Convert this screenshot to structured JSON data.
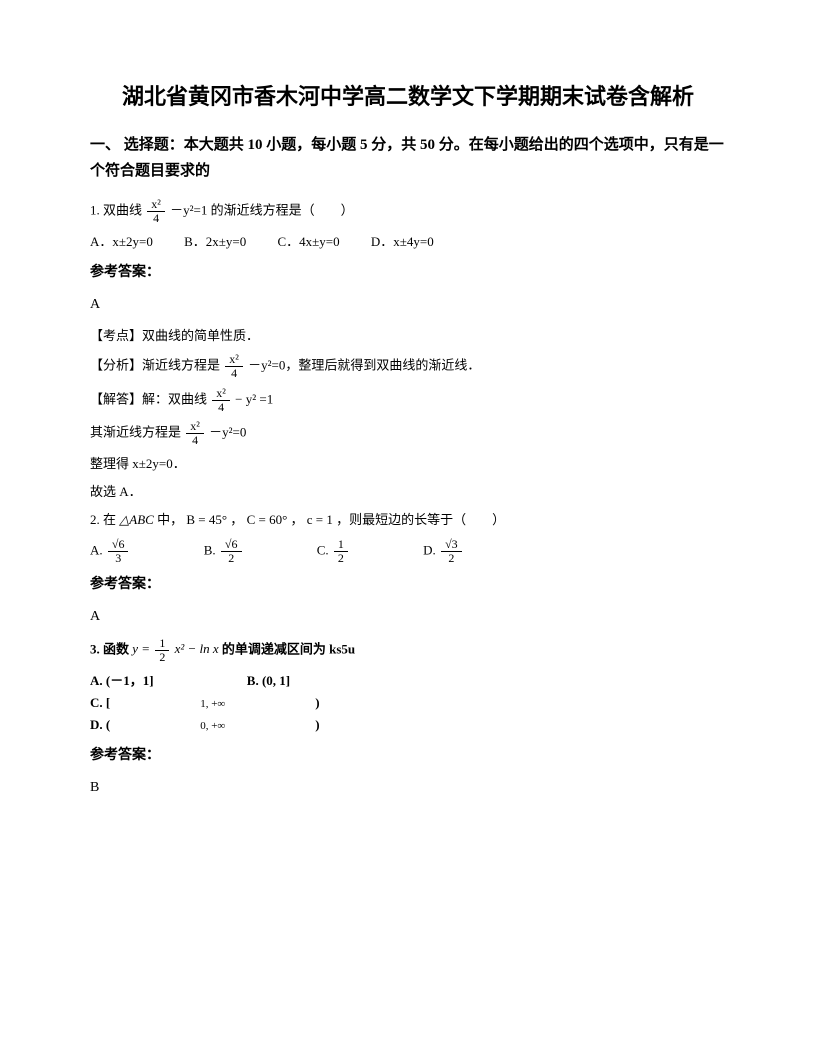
{
  "title": "湖北省黄冈市香木河中学高二数学文下学期期末试卷含解析",
  "section1": "一、 选择题：本大题共 10 小题，每小题 5 分，共 50 分。在每小题给出的四个选项中，只有是一个符合题目要求的",
  "q1": {
    "stem_a": "1. 双曲线 ",
    "stem_b": " －y²=1 的渐近线方程是（　　）",
    "frac_num": "x²",
    "frac_den": "4",
    "optA": "A．x±2y=0",
    "optB": "B．2x±y=0",
    "optC": "C．4x±y=0",
    "optD": "D．x±4y=0",
    "ans_label": "参考答案：",
    "ans": "A",
    "kp": "【考点】双曲线的简单性质．",
    "fx_a": "【分析】渐近线方程是 ",
    "fx_b": " －y²=0，整理后就得到双曲线的渐近线．",
    "jd_a": "【解答】解：双曲线 ",
    "jd_eq_end": "=1",
    "as_a": "其渐近线方程是 ",
    "as_b": " －y²=0",
    "zl": "整理得 x±2y=0．",
    "gx": "故选 A．"
  },
  "q2": {
    "stem_a": "2. 在 ",
    "tri": "△ABC",
    "stem_b": " 中，",
    "b1": "B = 45°",
    "c1": "C = 60°",
    "c2": "c = 1",
    "stem_c": "，则最短边的长等于（　　）",
    "optA": "A.",
    "optB": "B.",
    "optC": "C.",
    "optD": "D.",
    "fA_num": "√6",
    "fA_den": "3",
    "fB_num": "√6",
    "fB_den": "2",
    "fC_num": "1",
    "fC_den": "2",
    "fD_num": "√3",
    "fD_den": "2",
    "ans_label": "参考答案：",
    "ans": "A"
  },
  "q3": {
    "stem_a": "3. 函数 ",
    "eq_y": "y = ",
    "f1_num": "1",
    "f1_den": "2",
    "eq_rest": "x² − ln x",
    "stem_b": " 的单调递减区间为 ks5u",
    "optA": "A. (－1，1]",
    "optB": "B. (0, 1]",
    "optC_a": "C. [",
    "optC_b": "1, +∞",
    "optC_c": ")",
    "optD_a": "D. (",
    "optD_b": "0, +∞",
    "optD_c": ")",
    "ans_label": "参考答案：",
    "ans": "B"
  }
}
